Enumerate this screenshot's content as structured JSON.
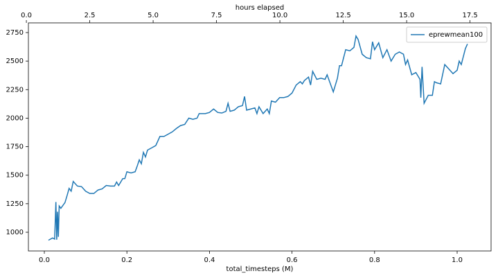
{
  "chart_data": {
    "type": "line",
    "xlabel": "total_timesteps (M)",
    "x2label": "hours elapsed",
    "xlim": [
      -0.0386,
      1.0822
    ],
    "xticks": [
      {
        "value": 0,
        "label": "0.0"
      },
      0.2,
      0.4,
      0.6,
      0.8,
      {
        "value": 1,
        "label": "1.0"
      }
    ],
    "x2lim": [
      0.08,
      18.33
    ],
    "x2ticks": [
      {
        "value": 0,
        "label": "0.0"
      },
      2.5,
      {
        "value": 5,
        "label": "5.0"
      },
      7.5,
      {
        "value": 10,
        "label": "10.0"
      },
      12.5,
      {
        "value": 15,
        "label": "15.0"
      },
      17.5
    ],
    "ylim": [
      836,
      2835
    ],
    "yticks": [
      1000,
      1250,
      1500,
      1750,
      2000,
      2250,
      2500,
      2750
    ],
    "grid": false,
    "legend": "upper right",
    "x": [
      0.01,
      0.02,
      0.025,
      0.028,
      0.03,
      0.032,
      0.034,
      0.036,
      0.04,
      0.05,
      0.055,
      0.06,
      0.065,
      0.07,
      0.08,
      0.09,
      0.1,
      0.11,
      0.12,
      0.13,
      0.14,
      0.15,
      0.16,
      0.17,
      0.175,
      0.18,
      0.19,
      0.195,
      0.2,
      0.21,
      0.22,
      0.225,
      0.23,
      0.235,
      0.24,
      0.245,
      0.25,
      0.26,
      0.27,
      0.28,
      0.29,
      0.3,
      0.31,
      0.32,
      0.33,
      0.34,
      0.35,
      0.36,
      0.37,
      0.375,
      0.38,
      0.39,
      0.4,
      0.41,
      0.42,
      0.43,
      0.44,
      0.445,
      0.45,
      0.46,
      0.47,
      0.48,
      0.485,
      0.49,
      0.5,
      0.51,
      0.515,
      0.52,
      0.53,
      0.54,
      0.545,
      0.55,
      0.56,
      0.57,
      0.58,
      0.59,
      0.6,
      0.61,
      0.62,
      0.625,
      0.63,
      0.64,
      0.645,
      0.65,
      0.66,
      0.67,
      0.68,
      0.685,
      0.69,
      0.7,
      0.71,
      0.715,
      0.72,
      0.73,
      0.74,
      0.75,
      0.755,
      0.76,
      0.77,
      0.78,
      0.79,
      0.795,
      0.8,
      0.81,
      0.82,
      0.83,
      0.84,
      0.85,
      0.86,
      0.87,
      0.875,
      0.88,
      0.89,
      0.9,
      0.905,
      0.91,
      0.912,
      0.915,
      0.92,
      0.93,
      0.94,
      0.945,
      0.95,
      0.96,
      0.97,
      0.98,
      0.99,
      1.0,
      1.005,
      1.01,
      1.02,
      1.025
    ],
    "series": [
      {
        "name": "eprewmean100",
        "color": "#1f77b4",
        "values": [
          930,
          950,
          940,
          1265,
          935,
          1180,
          960,
          1230,
          1210,
          1260,
          1320,
          1385,
          1360,
          1445,
          1405,
          1400,
          1360,
          1340,
          1340,
          1370,
          1380,
          1410,
          1405,
          1405,
          1440,
          1410,
          1470,
          1470,
          1530,
          1520,
          1530,
          1580,
          1635,
          1600,
          1700,
          1660,
          1720,
          1740,
          1760,
          1840,
          1840,
          1860,
          1880,
          1910,
          1935,
          1945,
          2000,
          1990,
          2000,
          2040,
          2040,
          2040,
          2050,
          2080,
          2050,
          2045,
          2060,
          2130,
          2060,
          2070,
          2100,
          2110,
          2190,
          2070,
          2080,
          2090,
          2040,
          2100,
          2040,
          2080,
          2040,
          2150,
          2140,
          2180,
          2180,
          2190,
          2220,
          2290,
          2320,
          2300,
          2330,
          2360,
          2290,
          2410,
          2340,
          2350,
          2340,
          2380,
          2330,
          2230,
          2350,
          2460,
          2460,
          2600,
          2590,
          2620,
          2720,
          2690,
          2560,
          2530,
          2520,
          2670,
          2600,
          2660,
          2530,
          2600,
          2500,
          2560,
          2580,
          2560,
          2470,
          2510,
          2380,
          2400,
          2370,
          2340,
          2180,
          2450,
          2130,
          2200,
          2200,
          2320,
          2310,
          2300,
          2470,
          2430,
          2390,
          2420,
          2500,
          2470,
          2610,
          2650
        ]
      }
    ]
  }
}
